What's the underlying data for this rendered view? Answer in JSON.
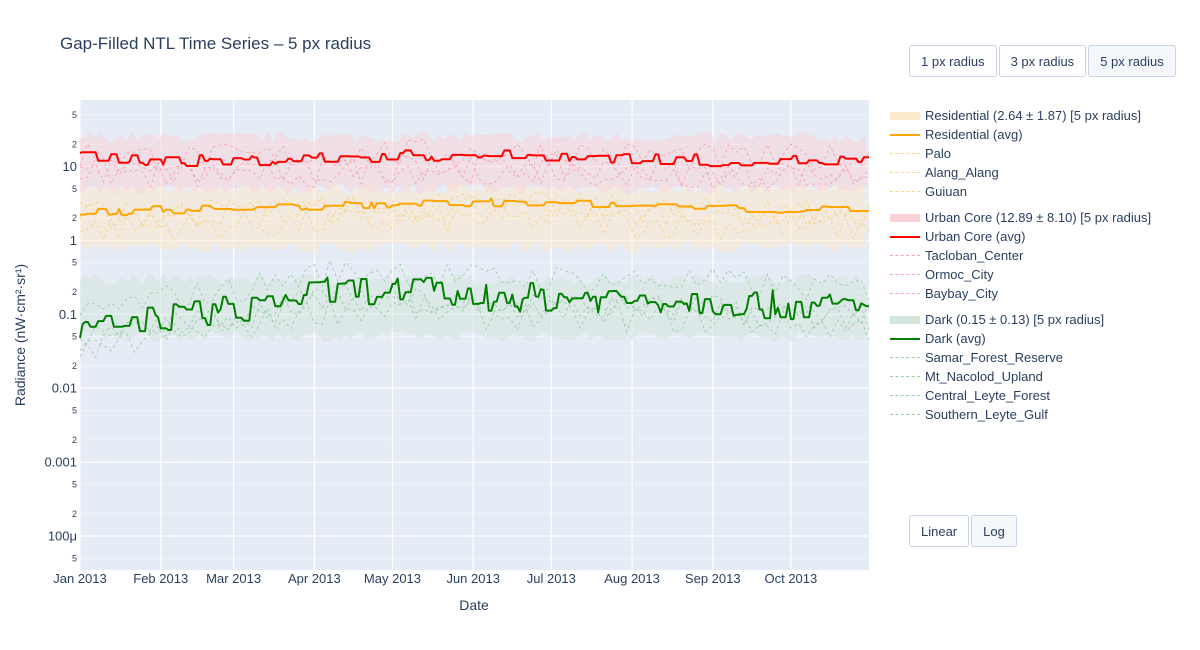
{
  "title": "Gap-Filled NTL Time Series – 5 px radius",
  "radius_buttons": [
    {
      "label": "1 px radius",
      "active": false
    },
    {
      "label": "3 px radius",
      "active": false
    },
    {
      "label": "5 px radius",
      "active": true
    }
  ],
  "scale_buttons": [
    {
      "label": "Linear",
      "active": false
    },
    {
      "label": "Log",
      "active": true
    }
  ],
  "chart_data": {
    "type": "line",
    "title": "Gap-Filled NTL Time Series – 5 px radius",
    "xlabel": "Date",
    "ylabel": "Radiance (nW·cm²·sr¹)",
    "x_ticks": [
      "Jan 2013",
      "Feb 2013",
      "Mar 2013",
      "Apr 2013",
      "May 2013",
      "Jun 2013",
      "Jul 2013",
      "Aug 2013",
      "Sep 2013",
      "Oct 2013"
    ],
    "x_range": [
      "2013-01-01",
      "2013-10-31"
    ],
    "y_scale": "log",
    "y_range": [
      3e-05,
      0.08
    ],
    "y_ticks_major": [
      "10",
      "1",
      "0.1",
      "0.01",
      "0.001",
      "100μ"
    ],
    "y_ticks_minor": [
      "5",
      "2",
      "5",
      "2",
      "5",
      "2",
      "5",
      "2",
      "5",
      "2",
      "5",
      "2",
      "5"
    ],
    "grid": true,
    "legend_position": "right",
    "series": [
      {
        "name": "Residential (2.64 ± 1.87) [5 px radius]",
        "kind": "band",
        "color": "#fde9cc",
        "band": [
          0.8,
          5.0
        ]
      },
      {
        "name": "Residential (avg)",
        "kind": "avg",
        "color": "#ffa500",
        "monthly": [
          [
            1,
            2.4
          ],
          [
            2,
            2.6
          ],
          [
            3,
            2.7
          ],
          [
            4,
            2.9
          ],
          [
            5,
            3.1
          ],
          [
            6,
            3.3
          ],
          [
            7,
            3.2
          ],
          [
            8,
            2.9
          ],
          [
            9,
            2.7
          ],
          [
            10,
            2.6
          ],
          [
            10.97,
            2.5
          ]
        ]
      },
      {
        "name": "Palo",
        "kind": "member",
        "color": "#f7d58d"
      },
      {
        "name": "Alang_Alang",
        "kind": "member",
        "color": "#f7d58d"
      },
      {
        "name": "Guiuan",
        "kind": "member",
        "color": "#f7d58d"
      },
      {
        "name": "Urban Core (12.89 ± 8.10) [5 px radius]",
        "kind": "band",
        "color": "#f9d3d8",
        "band": [
          5.0,
          25.0
        ]
      },
      {
        "name": "Urban Core (avg)",
        "kind": "avg",
        "color": "#ff0000",
        "monthly": [
          [
            1,
            14
          ],
          [
            2,
            12
          ],
          [
            3,
            12
          ],
          [
            4,
            13
          ],
          [
            5,
            14
          ],
          [
            6,
            14
          ],
          [
            7,
            14
          ],
          [
            8,
            13
          ],
          [
            9,
            12
          ],
          [
            10,
            12
          ],
          [
            10.97,
            12
          ]
        ]
      },
      {
        "name": "Tacloban_Center",
        "kind": "member",
        "color": "#f4a6b4"
      },
      {
        "name": "Ormoc_City",
        "kind": "member",
        "color": "#f4a6b4"
      },
      {
        "name": "Baybay_City",
        "kind": "member",
        "color": "#f4a6b4"
      },
      {
        "name": "Dark (0.15 ± 0.13) [5 px radius]",
        "kind": "band",
        "color": "#d5e6dc",
        "band": [
          0.05,
          0.3
        ]
      },
      {
        "name": "Dark (avg)",
        "kind": "avg",
        "color": "#008000",
        "monthly": [
          [
            1,
            0.055
          ],
          [
            2,
            0.09
          ],
          [
            3,
            0.12
          ],
          [
            4,
            0.2
          ],
          [
            5,
            0.22
          ],
          [
            6,
            0.17
          ],
          [
            7,
            0.17
          ],
          [
            8,
            0.16
          ],
          [
            9,
            0.15
          ],
          [
            10,
            0.13
          ],
          [
            10.97,
            0.12
          ]
        ]
      },
      {
        "name": "Samar_Forest_Reserve",
        "kind": "member",
        "color": "#9ccfa6"
      },
      {
        "name": "Mt_Nacolod_Upland",
        "kind": "member",
        "color": "#9ccfa6"
      },
      {
        "name": "Central_Leyte_Forest",
        "kind": "member",
        "color": "#9ccfa6"
      },
      {
        "name": "Southern_Leyte_Gulf",
        "kind": "member",
        "color": "#9ccfa6"
      }
    ]
  }
}
